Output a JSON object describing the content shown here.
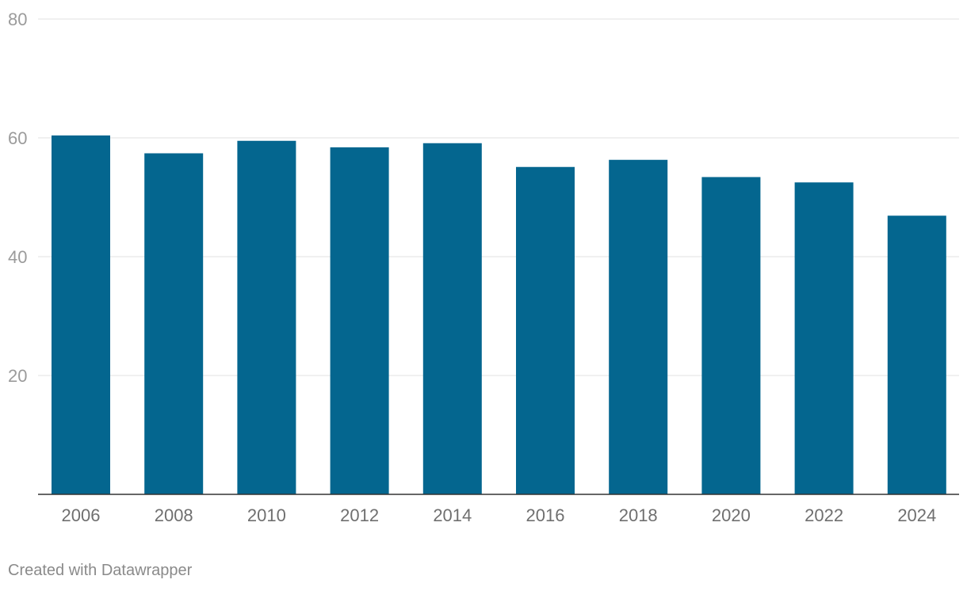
{
  "chart_data": {
    "type": "bar",
    "categories": [
      "2006",
      "2008",
      "2010",
      "2012",
      "2014",
      "2016",
      "2018",
      "2020",
      "2022",
      "2024"
    ],
    "values": [
      60.4,
      57.4,
      59.5,
      58.4,
      59.1,
      55.1,
      56.3,
      53.4,
      52.5,
      46.9
    ],
    "ylim": [
      0,
      80
    ],
    "yticks": [
      20,
      40,
      60,
      80
    ],
    "title": "",
    "xlabel": "",
    "ylabel": "",
    "grid": true,
    "bar_color": "#04668f"
  },
  "footer": {
    "credit": "Created with Datawrapper"
  }
}
